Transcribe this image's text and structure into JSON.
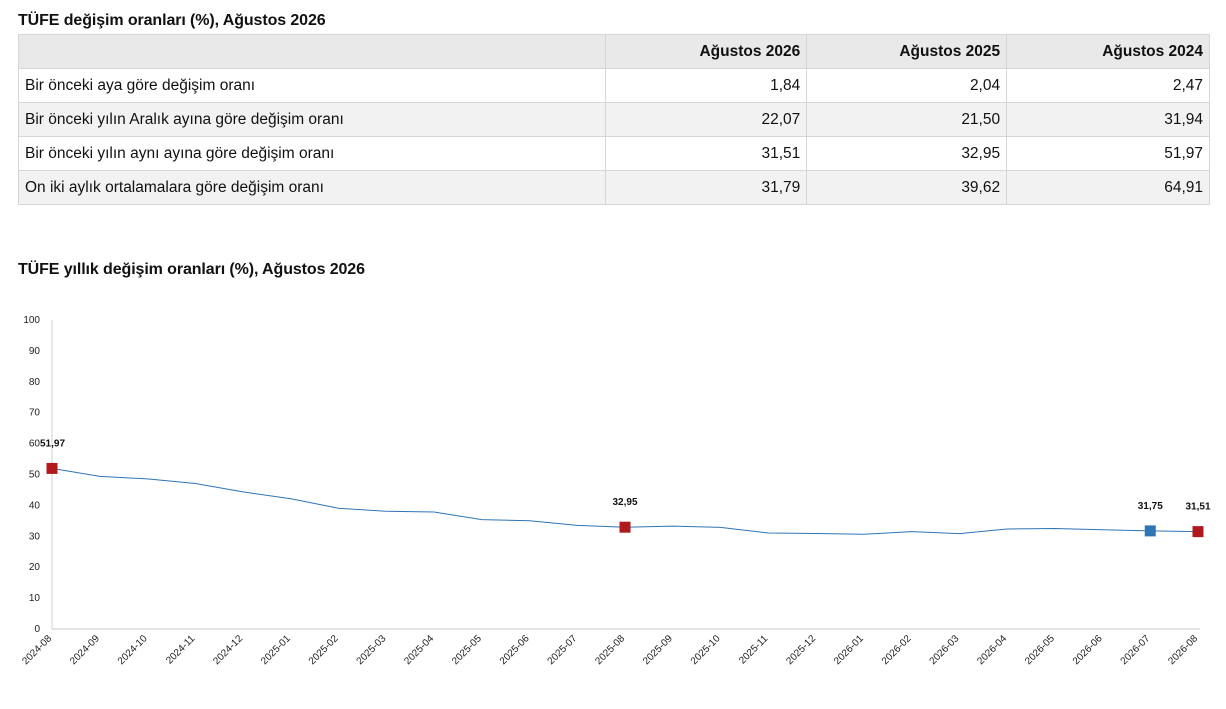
{
  "table": {
    "title": "TÜFE değişim oranları (%), Ağustos 2026",
    "columns": [
      "",
      "Ağustos 2026",
      "Ağustos 2025",
      "Ağustos 2024"
    ],
    "rows": [
      {
        "label": "Bir önceki aya göre değişim oranı",
        "values": [
          "1,84",
          "2,04",
          "2,47"
        ]
      },
      {
        "label": "Bir önceki yılın Aralık ayına göre değişim oranı",
        "values": [
          "22,07",
          "21,50",
          "31,94"
        ]
      },
      {
        "label": "Bir önceki yılın aynı ayına göre değişim oranı",
        "values": [
          "31,51",
          "32,95",
          "51,97"
        ]
      },
      {
        "label": "On iki aylık ortalamalara göre değişim oranı",
        "values": [
          "31,79",
          "39,62",
          "64,91"
        ]
      }
    ]
  },
  "chart_data": {
    "type": "line",
    "title": "TÜFE yıllık değişim oranları (%), Ağustos 2026",
    "xlabel": "",
    "ylabel": "",
    "ylim": [
      0,
      100
    ],
    "yticks": [
      0,
      10,
      20,
      30,
      40,
      50,
      60,
      70,
      80,
      90,
      100
    ],
    "grid": false,
    "legend": "none",
    "x": [
      "2024-08",
      "2024-09",
      "2024-10",
      "2024-11",
      "2024-12",
      "2025-01",
      "2025-02",
      "2025-03",
      "2025-04",
      "2025-05",
      "2025-06",
      "2025-07",
      "2025-08",
      "2025-09",
      "2025-10",
      "2025-11",
      "2025-12",
      "2026-01",
      "2026-02",
      "2026-03",
      "2026-04",
      "2026-05",
      "2026-06",
      "2026-07",
      "2026-08"
    ],
    "series": [
      {
        "color": "#2e75b6",
        "values": [
          51.97,
          49.38,
          48.58,
          47.09,
          44.38,
          42.12,
          39.05,
          38.1,
          37.86,
          35.41,
          35.05,
          33.52,
          32.95,
          33.29,
          32.87,
          31.07,
          30.89,
          30.65,
          31.53,
          30.87,
          32.37,
          32.54,
          32.1,
          31.75,
          31.51
        ]
      }
    ],
    "markers": [
      {
        "x": "2024-08",
        "value": 51.97,
        "label": "51,97",
        "color": "#b0191e"
      },
      {
        "x": "2025-08",
        "value": 32.95,
        "label": "32,95",
        "color": "#b0191e"
      },
      {
        "x": "2026-07",
        "value": 31.75,
        "label": "31,75",
        "color": "#2e75b6"
      },
      {
        "x": "2026-08",
        "value": 31.51,
        "label": "31,51",
        "color": "#b0191e"
      }
    ]
  }
}
